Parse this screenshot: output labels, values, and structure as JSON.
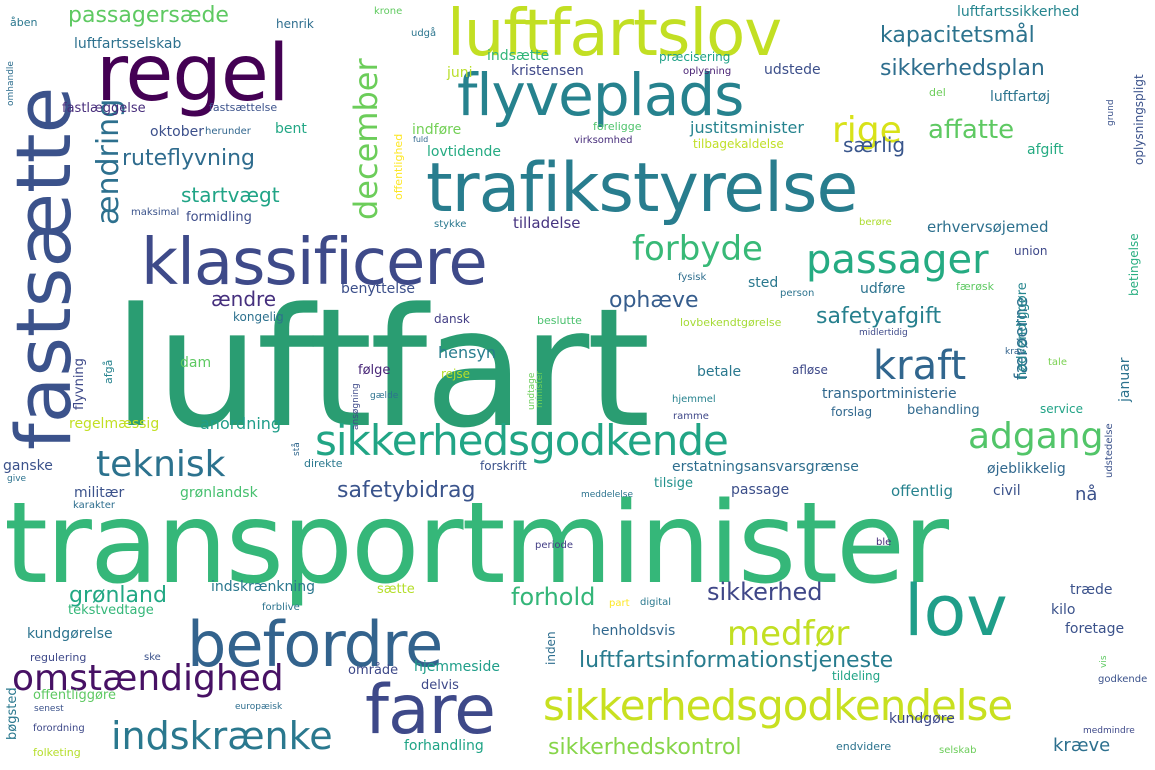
{
  "words": [
    {
      "text": "luftfart",
      "color": "#2a9d72"
    },
    {
      "text": "transportminister",
      "color": "#35b779"
    },
    {
      "text": "trafikstyrelse",
      "color": "#287d8e"
    },
    {
      "text": "klassificere",
      "color": "#3e4a89"
    },
    {
      "text": "regel",
      "color": "#440154"
    },
    {
      "text": "luftfartslov",
      "color": "#c2df23"
    },
    {
      "text": "flyveplads",
      "color": "#26828e"
    },
    {
      "text": "fastsætte",
      "color": "#3b528b"
    },
    {
      "text": "befordre",
      "color": "#33638d"
    },
    {
      "text": "lov",
      "color": "#1f9e89"
    },
    {
      "text": "fare",
      "color": "#3e4989"
    },
    {
      "text": "sikkerhedsgodkendelse",
      "color": "#c8e020"
    },
    {
      "text": "sikkerhedsgodkende",
      "color": "#21a585"
    },
    {
      "text": "omstændighed",
      "color": "#471164"
    },
    {
      "text": "indskrænke",
      "color": "#2a788e"
    },
    {
      "text": "ændring",
      "color": "#2d708e"
    },
    {
      "text": "december",
      "color": "#6ccd5a"
    },
    {
      "text": "passager",
      "color": "#25ab82"
    },
    {
      "text": "forbyde",
      "color": "#38b977"
    },
    {
      "text": "kraft",
      "color": "#31668e"
    },
    {
      "text": "adgang",
      "color": "#52c569"
    },
    {
      "text": "medfør",
      "color": "#c2df23"
    },
    {
      "text": "teknisk",
      "color": "#2c728e"
    },
    {
      "text": "rige",
      "color": "#d8e219"
    },
    {
      "text": "affatte",
      "color": "#5ec962"
    },
    {
      "text": "passagersæde",
      "color": "#5ec962"
    },
    {
      "text": "kapacitetsmål",
      "color": "#2c738e"
    },
    {
      "text": "sikkerhedsplan",
      "color": "#2e6e8e"
    },
    {
      "text": "ruteflyvning",
      "color": "#2f6c8e"
    },
    {
      "text": "startvægt",
      "color": "#20a486"
    },
    {
      "text": "safetyafgift",
      "color": "#27808e"
    },
    {
      "text": "ophæve",
      "color": "#365d8d"
    },
    {
      "text": "ændre",
      "color": "#46307e"
    },
    {
      "text": "færøerne",
      "color": "#2e6f8e"
    },
    {
      "text": "safetybidrag",
      "color": "#3a548c"
    },
    {
      "text": "sikkerhed",
      "color": "#3f4788"
    },
    {
      "text": "forhold",
      "color": "#34b679"
    },
    {
      "text": "grønland",
      "color": "#22a884"
    },
    {
      "text": "luftfartsinformationstjeneste",
      "color": "#287c8e"
    },
    {
      "text": "sikkerhedskontrol",
      "color": "#86d549"
    },
    {
      "text": "særlig",
      "color": "#39568c"
    },
    {
      "text": "luftfartssikkerhed",
      "color": "#25858e"
    },
    {
      "text": "luftfartsselskab",
      "color": "#2d718e"
    },
    {
      "text": "kristensen",
      "color": "#3f4889"
    },
    {
      "text": "udstede",
      "color": "#3c4f8a"
    },
    {
      "text": "indsætte",
      "color": "#32b67a"
    },
    {
      "text": "juni",
      "color": "#b8de29"
    },
    {
      "text": "præcisering",
      "color": "#1fa187"
    },
    {
      "text": "oplysning",
      "color": "#482173"
    },
    {
      "text": "henrik",
      "color": "#2e6e8e"
    },
    {
      "text": "åben",
      "color": "#2a778e"
    },
    {
      "text": "krone",
      "color": "#60ca60"
    },
    {
      "text": "udgå",
      "color": "#2b758e"
    },
    {
      "text": "fastlæggelse",
      "color": "#472d7b"
    },
    {
      "text": "fastsættelse",
      "color": "#3b528b"
    },
    {
      "text": "oktober",
      "color": "#3c508b"
    },
    {
      "text": "herunder",
      "color": "#31668e"
    },
    {
      "text": "bent",
      "color": "#22a785"
    },
    {
      "text": "indføre",
      "color": "#73d056"
    },
    {
      "text": "justitsminister",
      "color": "#25838e"
    },
    {
      "text": "luftfartøj",
      "color": "#2b748e"
    },
    {
      "text": "del",
      "color": "#6ccd5a"
    },
    {
      "text": "virksomhed",
      "color": "#472d7b"
    },
    {
      "text": "lovtidende",
      "color": "#25ab82"
    },
    {
      "text": "foreligge",
      "color": "#4ec36b"
    },
    {
      "text": "tilbagekaldelse",
      "color": "#c0df25"
    },
    {
      "text": "afgift",
      "color": "#25ab82"
    },
    {
      "text": "fuld",
      "color": "#31688e"
    },
    {
      "text": "offentlighed",
      "color": "#fde725"
    },
    {
      "text": "formidling",
      "color": "#3d4d8a"
    },
    {
      "text": "maksimal",
      "color": "#3a538b"
    },
    {
      "text": "tilladelse",
      "color": "#463480"
    },
    {
      "text": "stykke",
      "color": "#2a788e"
    },
    {
      "text": "berøre",
      "color": "#addc30"
    },
    {
      "text": "erhvervsøjemed",
      "color": "#2d708e"
    },
    {
      "text": "union",
      "color": "#3e4989"
    },
    {
      "text": "benyttelse",
      "color": "#3c4f8a"
    },
    {
      "text": "fysisk",
      "color": "#2e6e8e"
    },
    {
      "text": "sted",
      "color": "#2a788e"
    },
    {
      "text": "udføre",
      "color": "#2c738e"
    },
    {
      "text": "færøsk",
      "color": "#5ec962"
    },
    {
      "text": "kongelig",
      "color": "#2d718e"
    },
    {
      "text": "dansk",
      "color": "#433e85"
    },
    {
      "text": "beslutte",
      "color": "#4ac16d"
    },
    {
      "text": "lovbekendtgørelse",
      "color": "#a5db36"
    },
    {
      "text": "person",
      "color": "#2c738e"
    },
    {
      "text": "midlertidig",
      "color": "#3e4a89"
    },
    {
      "text": "hensyn",
      "color": "#287d8e"
    },
    {
      "text": "dam",
      "color": "#5ec962"
    },
    {
      "text": "flyvning",
      "color": "#3e4989"
    },
    {
      "text": "afgå",
      "color": "#26828e"
    },
    {
      "text": "følge",
      "color": "#482677"
    },
    {
      "text": "rejse",
      "color": "#b5de2b"
    },
    {
      "text": "betale",
      "color": "#2a788e"
    },
    {
      "text": "afløse",
      "color": "#3e4989"
    },
    {
      "text": "nødvendiggøre",
      "color": "#25858e"
    },
    {
      "text": "januar",
      "color": "#2c728e"
    },
    {
      "text": "krav",
      "color": "#33638d"
    },
    {
      "text": "tale",
      "color": "#7ad151"
    },
    {
      "text": "transportministerie",
      "color": "#30688e"
    },
    {
      "text": "forslag",
      "color": "#31688e"
    },
    {
      "text": "behandling",
      "color": "#30698e"
    },
    {
      "text": "service",
      "color": "#20a386"
    },
    {
      "text": "regelmæssig",
      "color": "#c2df23"
    },
    {
      "text": "anordning",
      "color": "#1f9e89"
    },
    {
      "text": "gælde",
      "color": "#2c728e"
    },
    {
      "text": "undtage",
      "color": "#6ccd5a"
    },
    {
      "text": "minister",
      "color": "#6ccd5a"
    },
    {
      "text": "hjemmel",
      "color": "#26828e"
    },
    {
      "text": "ramme",
      "color": "#3f4889"
    },
    {
      "text": "ansøgning",
      "color": "#3e4989"
    },
    {
      "text": "stå",
      "color": "#31688e"
    },
    {
      "text": "direkte",
      "color": "#2a788e"
    },
    {
      "text": "forskrift",
      "color": "#3b528b"
    },
    {
      "text": "erstatningsansvarsgrænse",
      "color": "#2e6e8e"
    },
    {
      "text": "øjeblikkelig",
      "color": "#31688e"
    },
    {
      "text": "tilsige",
      "color": "#21918c"
    },
    {
      "text": "offentlig",
      "color": "#26828e"
    },
    {
      "text": "ganske",
      "color": "#3b528b"
    },
    {
      "text": "give",
      "color": "#2c728e"
    },
    {
      "text": "militær",
      "color": "#3b528b"
    },
    {
      "text": "karakter",
      "color": "#2e6e8e"
    },
    {
      "text": "grønlandsk",
      "color": "#46c06f"
    },
    {
      "text": "meddelelse",
      "color": "#2c738e"
    },
    {
      "text": "passage",
      "color": "#3c4f8a"
    },
    {
      "text": "civil",
      "color": "#3b528b"
    },
    {
      "text": "nå",
      "color": "#3b518b"
    },
    {
      "text": "udstedelse",
      "color": "#3b528b"
    },
    {
      "text": "betingelse",
      "color": "#28ae80"
    },
    {
      "text": "periode",
      "color": "#433e85"
    },
    {
      "text": "ble",
      "color": "#472d7b"
    },
    {
      "text": "indskrænkning",
      "color": "#2a778e"
    },
    {
      "text": "sætte",
      "color": "#b5de2b"
    },
    {
      "text": "tekstvedtage",
      "color": "#35b779"
    },
    {
      "text": "forblive",
      "color": "#2c738e"
    },
    {
      "text": "part",
      "color": "#fde725"
    },
    {
      "text": "digital",
      "color": "#2a788e"
    },
    {
      "text": "træde",
      "color": "#3b528b"
    },
    {
      "text": "kilo",
      "color": "#3b528b"
    },
    {
      "text": "foretage",
      "color": "#3b528b"
    },
    {
      "text": "kundgørelse",
      "color": "#2c738e"
    },
    {
      "text": "regulering",
      "color": "#3e4989"
    },
    {
      "text": "ske",
      "color": "#3b528b"
    },
    {
      "text": "henholdsvis",
      "color": "#31688e"
    },
    {
      "text": "inden",
      "color": "#2e6e8e"
    },
    {
      "text": "vis",
      "color": "#5ec962"
    },
    {
      "text": "område",
      "color": "#3e4989"
    },
    {
      "text": "hjemmeside",
      "color": "#1f9e89"
    },
    {
      "text": "delvis",
      "color": "#3e4989"
    },
    {
      "text": "tildeling",
      "color": "#20a486"
    },
    {
      "text": "godkende",
      "color": "#3b528b"
    },
    {
      "text": "offentliggøre",
      "color": "#5ec962"
    },
    {
      "text": "senest",
      "color": "#3b528b"
    },
    {
      "text": "bøgsted",
      "color": "#2a788e"
    },
    {
      "text": "europæisk",
      "color": "#2e6e8e"
    },
    {
      "text": "forordning",
      "color": "#3e4989"
    },
    {
      "text": "forhandling",
      "color": "#20a486"
    },
    {
      "text": "kundgøre",
      "color": "#3e4989"
    },
    {
      "text": "endvidere",
      "color": "#2c738e"
    },
    {
      "text": "medmindre",
      "color": "#3e4989"
    },
    {
      "text": "kræve",
      "color": "#2d708e"
    },
    {
      "text": "selskab",
      "color": "#6ccd5a"
    },
    {
      "text": "folketing",
      "color": "#b5de2b"
    },
    {
      "text": "grund",
      "color": "#3b528b"
    },
    {
      "text": "oplysningspligt",
      "color": "#3b528b"
    },
    {
      "text": "omhandle",
      "color": "#2e6e8e"
    }
  ]
}
